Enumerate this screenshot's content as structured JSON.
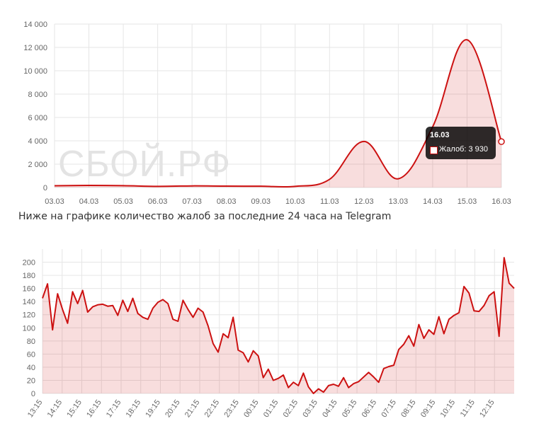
{
  "colors": {
    "line": "#cc1111",
    "fill": "rgba(204,17,17,0.14)",
    "grid": "#e6e6e6",
    "axis": "#666666"
  },
  "watermark": "СБОЙ.РФ",
  "caption": "Ниже на графике количество жалоб за последние 24 часа на Telegram",
  "tooltip": {
    "title": "16.03",
    "body": "Жалоб: 3 930"
  },
  "chart_data": [
    {
      "type": "area",
      "title": "",
      "x": [
        "03.03",
        "04.03",
        "05.03",
        "06.03",
        "07.03",
        "08.03",
        "09.03",
        "10.03",
        "11.03",
        "12.03",
        "13.03",
        "14.03",
        "15.03",
        "16.03"
      ],
      "values": [
        150,
        180,
        160,
        100,
        140,
        120,
        110,
        100,
        700,
        3950,
        750,
        5200,
        12650,
        3930
      ],
      "yticks": [
        "0",
        "2 000",
        "4 000",
        "6 000",
        "8 000",
        "10 000",
        "12 000",
        "14 000"
      ],
      "ylim": [
        0,
        14000
      ],
      "grid": true,
      "highlight_index": 13
    },
    {
      "type": "area",
      "title": "",
      "xticks": [
        "13:15",
        "14:15",
        "15:15",
        "16:15",
        "17:15",
        "18:15",
        "19:15",
        "20:15",
        "21:15",
        "22:15",
        "23:15",
        "00:15",
        "01:15",
        "02:15",
        "03:15",
        "04:15",
        "05:15",
        "06:15",
        "07:15",
        "08:15",
        "09:15",
        "10:15",
        "11:15",
        "12:15"
      ],
      "values": [
        145,
        167,
        97,
        152,
        128,
        107,
        155,
        137,
        157,
        124,
        132,
        135,
        136,
        133,
        134,
        119,
        142,
        125,
        145,
        122,
        116,
        113,
        130,
        139,
        143,
        137,
        113,
        110,
        142,
        128,
        116,
        130,
        124,
        103,
        76,
        63,
        91,
        85,
        116,
        66,
        62,
        48,
        65,
        57,
        24,
        37,
        20,
        23,
        28,
        9,
        17,
        12,
        31,
        10,
        0,
        7,
        2,
        12,
        14,
        11,
        24,
        9,
        15,
        18,
        25,
        32,
        25,
        17,
        38,
        41,
        43,
        67,
        75,
        88,
        72,
        105,
        84,
        97,
        90,
        117,
        91,
        113,
        119,
        123,
        163,
        153,
        126,
        125,
        134,
        149,
        155,
        87,
        207,
        168,
        160
      ],
      "yticks": [
        "0",
        "20",
        "40",
        "60",
        "80",
        "100",
        "120",
        "140",
        "160",
        "180",
        "200"
      ],
      "ylim": [
        0,
        220
      ],
      "grid": true
    }
  ]
}
